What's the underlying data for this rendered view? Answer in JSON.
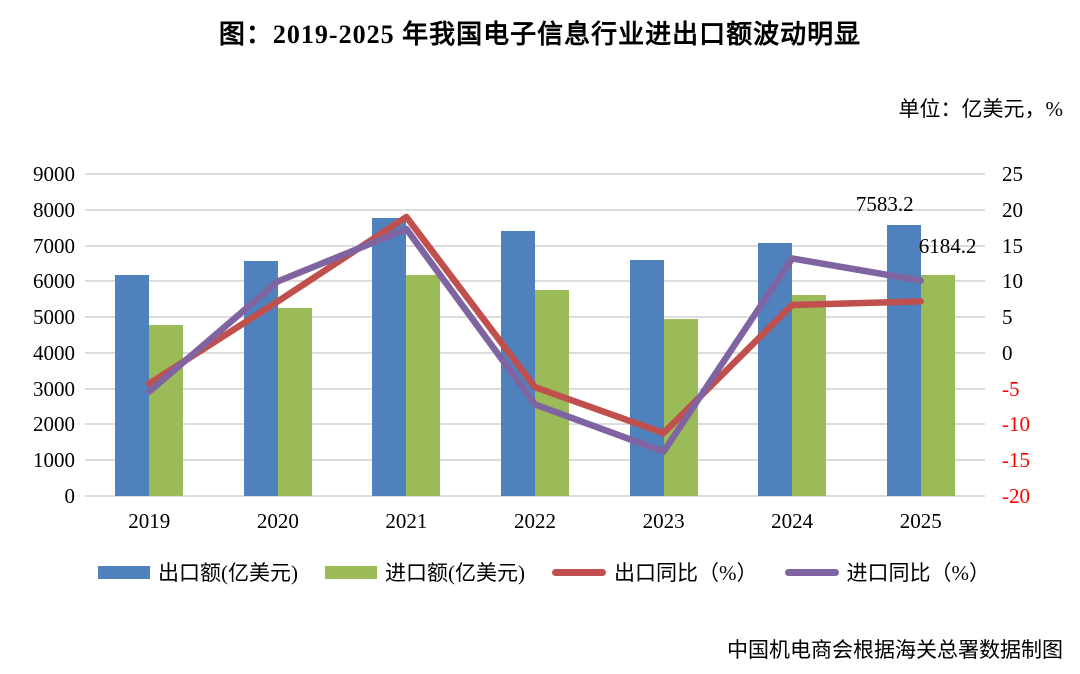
{
  "title": "图：2019-2025 年我国电子信息行业进出口额波动明显",
  "unit_label": "单位：亿美元，%",
  "source_note": "中国机电商会根据海关总署数据制图",
  "colors": {
    "export_bar": "#4F81BD",
    "import_bar": "#9BBB59",
    "export_line": "#C0504D",
    "import_line": "#8064A2",
    "negative_tick": "#FF0000",
    "gridline": "#DCDCDC"
  },
  "chart_data": {
    "type": "combo_bar_line",
    "categories": [
      "2019",
      "2020",
      "2021",
      "2022",
      "2023",
      "2024",
      "2025"
    ],
    "bar_series": [
      {
        "name": "出口额(亿美元)",
        "axis": "left",
        "color": "#4F81BD",
        "values": [
          6185,
          6570,
          7770,
          7420,
          6610,
          7060,
          7583.2
        ]
      },
      {
        "name": "进口额(亿美元)",
        "axis": "left",
        "color": "#9BBB59",
        "values": [
          4780,
          5250,
          6185,
          5750,
          4940,
          5615,
          6184.2
        ]
      }
    ],
    "line_series": [
      {
        "name": "出口同比（%）",
        "axis": "right",
        "color": "#C0504D",
        "values": [
          -4.3,
          7.2,
          19.0,
          -4.8,
          -11.2,
          6.7,
          7.2
        ]
      },
      {
        "name": "进口同比（%）",
        "axis": "right",
        "color": "#8064A2",
        "values": [
          -5.4,
          10.0,
          17.3,
          -7.2,
          -13.8,
          13.2,
          10.1
        ]
      }
    ],
    "left_axis": {
      "min": 0,
      "max": 9000,
      "step": 1000,
      "ticks": [
        9000,
        8000,
        7000,
        6000,
        5000,
        4000,
        3000,
        2000,
        1000,
        0
      ]
    },
    "right_axis": {
      "min": -20,
      "max": 25,
      "step": 5,
      "ticks": [
        25,
        20,
        15,
        10,
        5,
        0,
        -5,
        -10,
        -15,
        -20
      ]
    },
    "data_labels": [
      {
        "series": "export",
        "category": "2025",
        "text": "7583.2"
      },
      {
        "series": "import",
        "category": "2025",
        "text": "6184.2"
      }
    ],
    "grid": true,
    "legend_position": "bottom"
  }
}
